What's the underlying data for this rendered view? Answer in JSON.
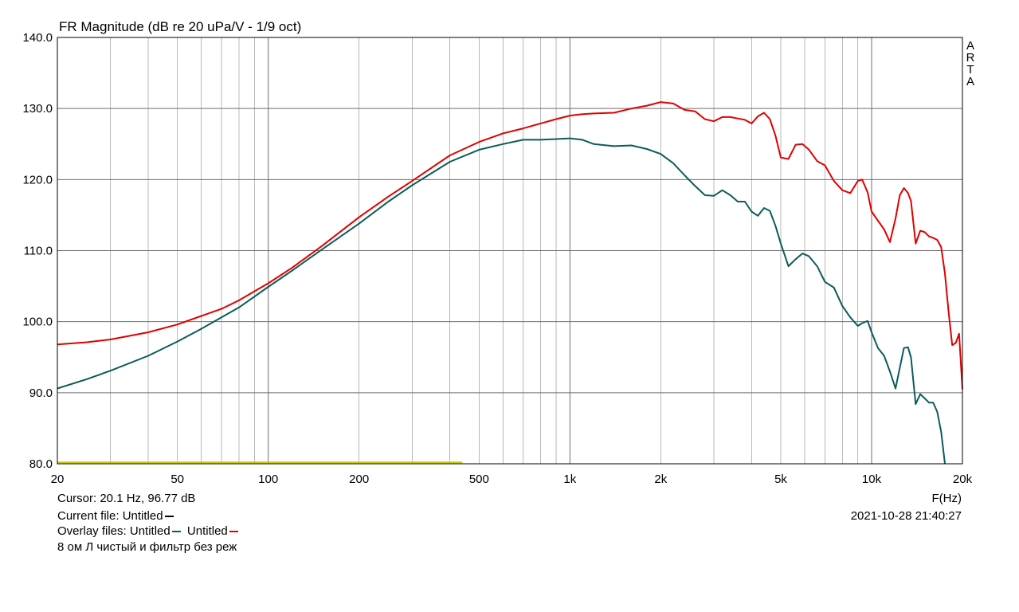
{
  "colors": {
    "background": "#ffffff",
    "grid": "#9a9a9a",
    "current": "#000000",
    "overlay1": "#0b5c5a",
    "overlay2": "#e00000",
    "baseline": "#c8c800"
  },
  "chart_data": {
    "type": "line",
    "title": "FR Magnitude (dB re 20 uPa/V - 1/9 oct)",
    "xlabel": "F(Hz)",
    "ylabel": "",
    "x_scale": "log",
    "xlim": [
      20,
      20000
    ],
    "ylim": [
      80,
      140
    ],
    "grid": true,
    "brand_label": [
      "A",
      "R",
      "T",
      "A"
    ],
    "x_ticks": [
      {
        "value": 20,
        "label": "20"
      },
      {
        "value": 50,
        "label": "50"
      },
      {
        "value": 100,
        "label": "100"
      },
      {
        "value": 200,
        "label": "200"
      },
      {
        "value": 500,
        "label": "500"
      },
      {
        "value": 1000,
        "label": "1k"
      },
      {
        "value": 2000,
        "label": "2k"
      },
      {
        "value": 5000,
        "label": "5k"
      },
      {
        "value": 10000,
        "label": "10k"
      },
      {
        "value": 20000,
        "label": "20k"
      }
    ],
    "y_ticks": [
      {
        "value": 80,
        "label": "80.0"
      },
      {
        "value": 90,
        "label": "90.0"
      },
      {
        "value": 100,
        "label": "100.0"
      },
      {
        "value": 110,
        "label": "110.0"
      },
      {
        "value": 120,
        "label": "120.0"
      },
      {
        "value": 130,
        "label": "130.0"
      },
      {
        "value": 140,
        "label": "140.0"
      }
    ],
    "series": [
      {
        "color_key": "overlay1",
        "x": [
          20,
          25,
          30,
          40,
          50,
          60,
          70,
          80,
          100,
          120,
          150,
          200,
          250,
          300,
          400,
          500,
          600,
          700,
          800,
          900,
          1000,
          1100,
          1200,
          1400,
          1600,
          1800,
          2000,
          2200,
          2400,
          2600,
          2800,
          3000,
          3200,
          3400,
          3600,
          3800,
          4000,
          4200,
          4400,
          4600,
          4800,
          5000,
          5300,
          5600,
          5900,
          6200,
          6600,
          7000,
          7500,
          8000,
          8500,
          9000,
          9300,
          9700,
          10000,
          10500,
          11000,
          11500,
          12000,
          12400,
          12800,
          13200,
          13500,
          14000,
          14500,
          15000,
          15500,
          16000,
          16500,
          17000,
          17500
        ],
        "y": [
          90.6,
          91.9,
          93.1,
          95.2,
          97.2,
          99.0,
          100.6,
          102.0,
          104.9,
          107.2,
          110.1,
          113.8,
          116.9,
          119.2,
          122.5,
          124.2,
          125.0,
          125.6,
          125.6,
          125.7,
          125.8,
          125.6,
          125.0,
          124.7,
          124.8,
          124.3,
          123.6,
          122.3,
          120.6,
          119.1,
          117.8,
          117.7,
          118.5,
          117.8,
          116.9,
          116.9,
          115.5,
          114.9,
          116.0,
          115.6,
          113.5,
          111.0,
          107.8,
          108.8,
          109.6,
          109.2,
          107.8,
          105.6,
          104.8,
          102.2,
          100.6,
          99.4,
          99.8,
          100.1,
          98.5,
          96.3,
          95.2,
          93.0,
          90.6,
          93.5,
          96.3,
          96.4,
          95.0,
          88.4,
          89.8,
          89.2,
          88.6,
          88.6,
          87.3,
          84.5,
          80.0
        ]
      },
      {
        "color_key": "overlay2",
        "x": [
          20,
          25,
          30,
          40,
          50,
          60,
          70,
          80,
          100,
          120,
          150,
          200,
          250,
          300,
          400,
          500,
          600,
          700,
          800,
          900,
          1000,
          1100,
          1200,
          1400,
          1600,
          1800,
          2000,
          2200,
          2400,
          2600,
          2800,
          3000,
          3200,
          3400,
          3600,
          3800,
          4000,
          4200,
          4400,
          4600,
          4800,
          5000,
          5300,
          5600,
          5900,
          6200,
          6600,
          7000,
          7500,
          8000,
          8500,
          9000,
          9300,
          9700,
          10000,
          10500,
          11000,
          11500,
          12000,
          12400,
          12800,
          13200,
          13500,
          14000,
          14500,
          15000,
          15500,
          16000,
          16500,
          17000,
          17500,
          18000,
          18500,
          19000,
          19500,
          20000
        ],
        "y": [
          96.8,
          97.1,
          97.5,
          98.5,
          99.6,
          100.8,
          101.8,
          103.0,
          105.4,
          107.6,
          110.6,
          114.7,
          117.6,
          119.8,
          123.4,
          125.3,
          126.5,
          127.2,
          127.9,
          128.5,
          129.0,
          129.2,
          129.3,
          129.4,
          130.0,
          130.4,
          130.9,
          130.7,
          129.8,
          129.6,
          128.5,
          128.2,
          128.8,
          128.8,
          128.6,
          128.4,
          127.9,
          128.9,
          129.4,
          128.5,
          126.2,
          123.1,
          122.9,
          124.9,
          125.0,
          124.2,
          122.6,
          122.0,
          119.8,
          118.5,
          118.1,
          119.8,
          120.0,
          118.2,
          115.5,
          114.2,
          113.0,
          111.2,
          114.5,
          117.8,
          118.8,
          118.1,
          117.0,
          111.0,
          112.8,
          112.6,
          112.0,
          111.8,
          111.5,
          110.5,
          106.8,
          101.3,
          96.7,
          97.0,
          98.3,
          90.5
        ]
      }
    ],
    "baseline": {
      "color_key": "baseline",
      "x": [
        20,
        440
      ],
      "y": [
        80.2,
        80.2
      ]
    }
  },
  "footer": {
    "cursor": "Cursor: 20.1 Hz, 96.77 dB",
    "axis_unit": "F(Hz)",
    "current_file": "Current file: Untitled",
    "overlay_label": "Overlay files:",
    "overlay1": "Untitled",
    "overlay2": "Untitled",
    "timestamp": "2021-10-28  21:40:27",
    "comment": "8 ом Л чистый и фильтр без реж"
  }
}
